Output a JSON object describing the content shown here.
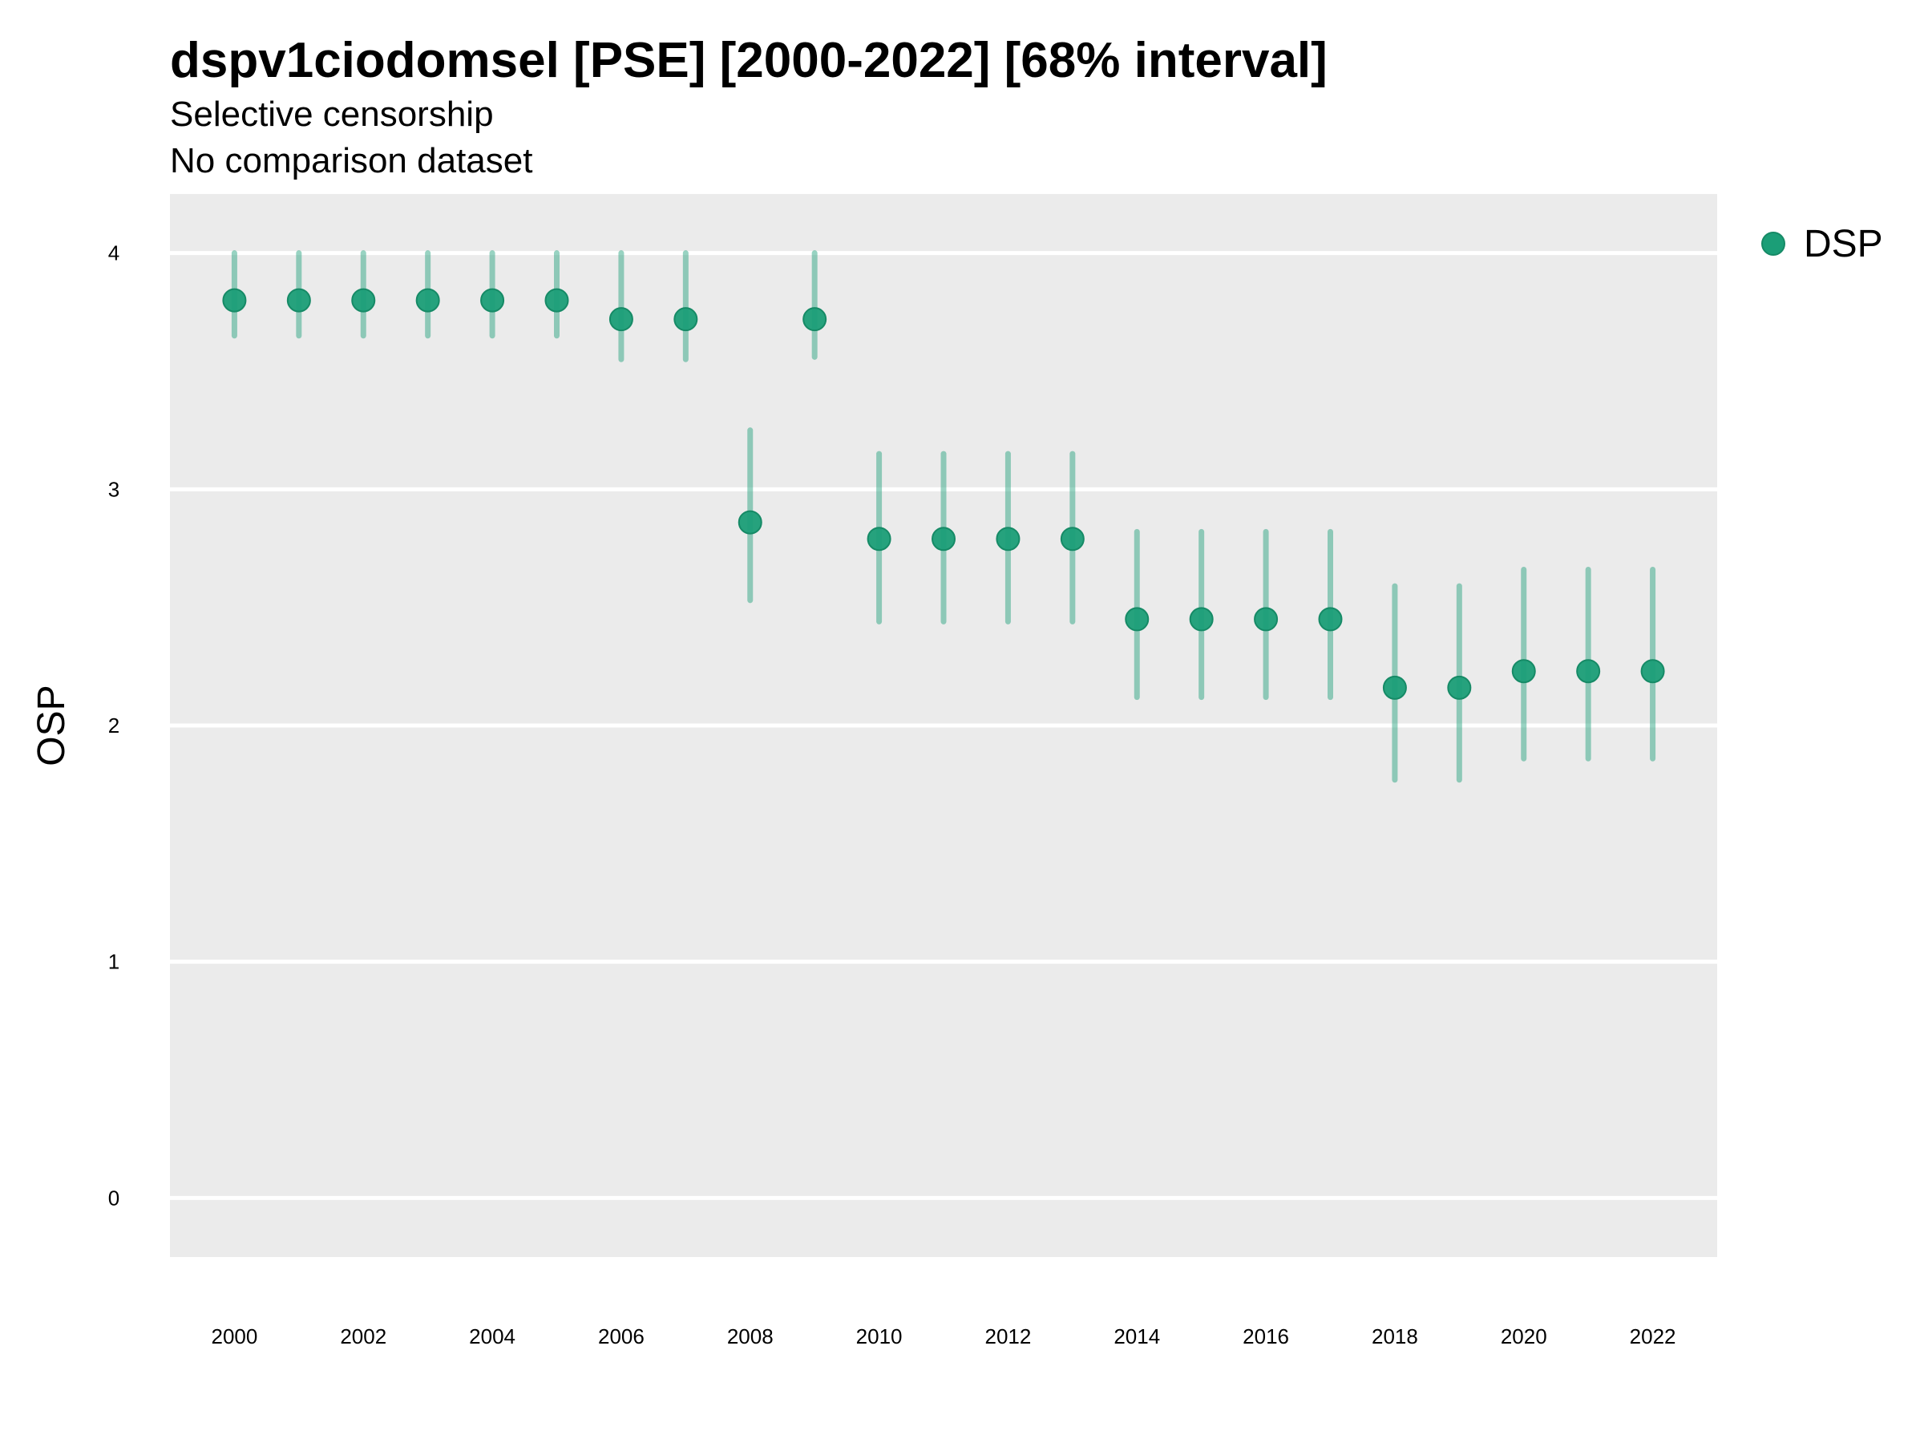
{
  "chart_data": {
    "type": "scatter",
    "title": "dspv1ciodomsel [PSE] [2000-2022] [68% interval]",
    "subtitle": "Selective censorship",
    "subtitle2": "No comparison dataset",
    "xlabel": "",
    "ylabel": "OSP",
    "xlim": [
      1999,
      2023
    ],
    "ylim": [
      -0.25,
      4.25
    ],
    "x_ticks": [
      2000,
      2002,
      2004,
      2006,
      2008,
      2010,
      2012,
      2014,
      2016,
      2018,
      2020,
      2022
    ],
    "y_ticks": [
      0,
      1,
      2,
      3,
      4
    ],
    "grid": true,
    "legend_position": "top-right",
    "colors": {
      "point": "#1b9e77",
      "panel": "#ebebeb",
      "grid": "#ffffff"
    },
    "series": [
      {
        "name": "DSP",
        "x": [
          2000,
          2001,
          2002,
          2003,
          2004,
          2005,
          2006,
          2007,
          2008,
          2009,
          2010,
          2011,
          2012,
          2013,
          2014,
          2015,
          2016,
          2017,
          2018,
          2019,
          2020,
          2021,
          2022
        ],
        "y": [
          3.8,
          3.8,
          3.8,
          3.8,
          3.8,
          3.8,
          3.72,
          3.72,
          2.86,
          3.72,
          2.79,
          2.79,
          2.79,
          2.79,
          2.45,
          2.45,
          2.45,
          2.45,
          2.16,
          2.16,
          2.23,
          2.23,
          2.23
        ],
        "lower": [
          3.65,
          3.65,
          3.65,
          3.65,
          3.65,
          3.65,
          3.55,
          3.55,
          2.53,
          3.56,
          2.44,
          2.44,
          2.44,
          2.44,
          2.12,
          2.12,
          2.12,
          2.12,
          1.77,
          1.77,
          1.86,
          1.86,
          1.86
        ],
        "upper": [
          4.0,
          4.0,
          4.0,
          4.0,
          4.0,
          4.0,
          4.0,
          4.0,
          3.25,
          4.0,
          3.15,
          3.15,
          3.15,
          3.15,
          2.82,
          2.82,
          2.82,
          2.82,
          2.59,
          2.59,
          2.66,
          2.66,
          2.66
        ]
      }
    ]
  }
}
